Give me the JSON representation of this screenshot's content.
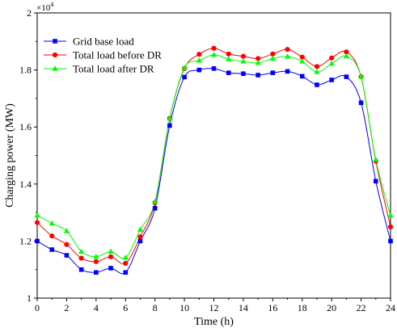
{
  "chart_data": {
    "type": "line",
    "xlabel": "Time (h)",
    "ylabel": "Charging power (MW)",
    "y_multiplier_base": "×10",
    "y_multiplier_exp": "4",
    "xlim": [
      0,
      24
    ],
    "ylim": [
      1.0,
      2.0
    ],
    "x_ticks": [
      0,
      2,
      4,
      6,
      8,
      10,
      12,
      14,
      16,
      18,
      20,
      22,
      24
    ],
    "x_tick_labels": [
      "0",
      "2",
      "4",
      "6",
      "8",
      "10",
      "12",
      "14",
      "16",
      "18",
      "20",
      "22",
      "24"
    ],
    "y_ticks": [
      1.0,
      1.2,
      1.4,
      1.6,
      1.8,
      2.0
    ],
    "y_tick_labels": [
      "1",
      "1.2",
      "1.4",
      "1.6",
      "1.8",
      "2"
    ],
    "legend_position": "top-left",
    "grid": false,
    "x": [
      0,
      1,
      2,
      3,
      4,
      5,
      6,
      7,
      8,
      9,
      10,
      11,
      12,
      13,
      14,
      15,
      16,
      17,
      18,
      19,
      20,
      21,
      22,
      23,
      24
    ],
    "series": [
      {
        "name": "Grid base load",
        "color": "#0000ff",
        "marker": "square",
        "values": [
          1.2,
          1.17,
          1.15,
          1.1,
          1.09,
          1.105,
          1.09,
          1.2,
          1.315,
          1.605,
          1.775,
          1.8,
          1.805,
          1.79,
          1.787,
          1.782,
          1.79,
          1.795,
          1.778,
          1.748,
          1.765,
          1.776,
          1.685,
          1.41,
          1.2
        ]
      },
      {
        "name": "Total load before DR",
        "color": "#ff0000",
        "marker": "circle",
        "values": [
          1.265,
          1.218,
          1.188,
          1.14,
          1.128,
          1.145,
          1.122,
          1.215,
          1.335,
          1.63,
          1.805,
          1.855,
          1.876,
          1.856,
          1.848,
          1.84,
          1.856,
          1.872,
          1.845,
          1.812,
          1.842,
          1.863,
          1.776,
          1.48,
          1.25
        ]
      },
      {
        "name": "Total load after DR",
        "color": "#00ff00",
        "marker": "triangle",
        "values": [
          1.29,
          1.262,
          1.235,
          1.163,
          1.145,
          1.163,
          1.142,
          1.24,
          1.338,
          1.63,
          1.807,
          1.833,
          1.853,
          1.838,
          1.83,
          1.825,
          1.84,
          1.847,
          1.83,
          1.793,
          1.822,
          1.848,
          1.776,
          1.485,
          1.29
        ]
      }
    ]
  }
}
